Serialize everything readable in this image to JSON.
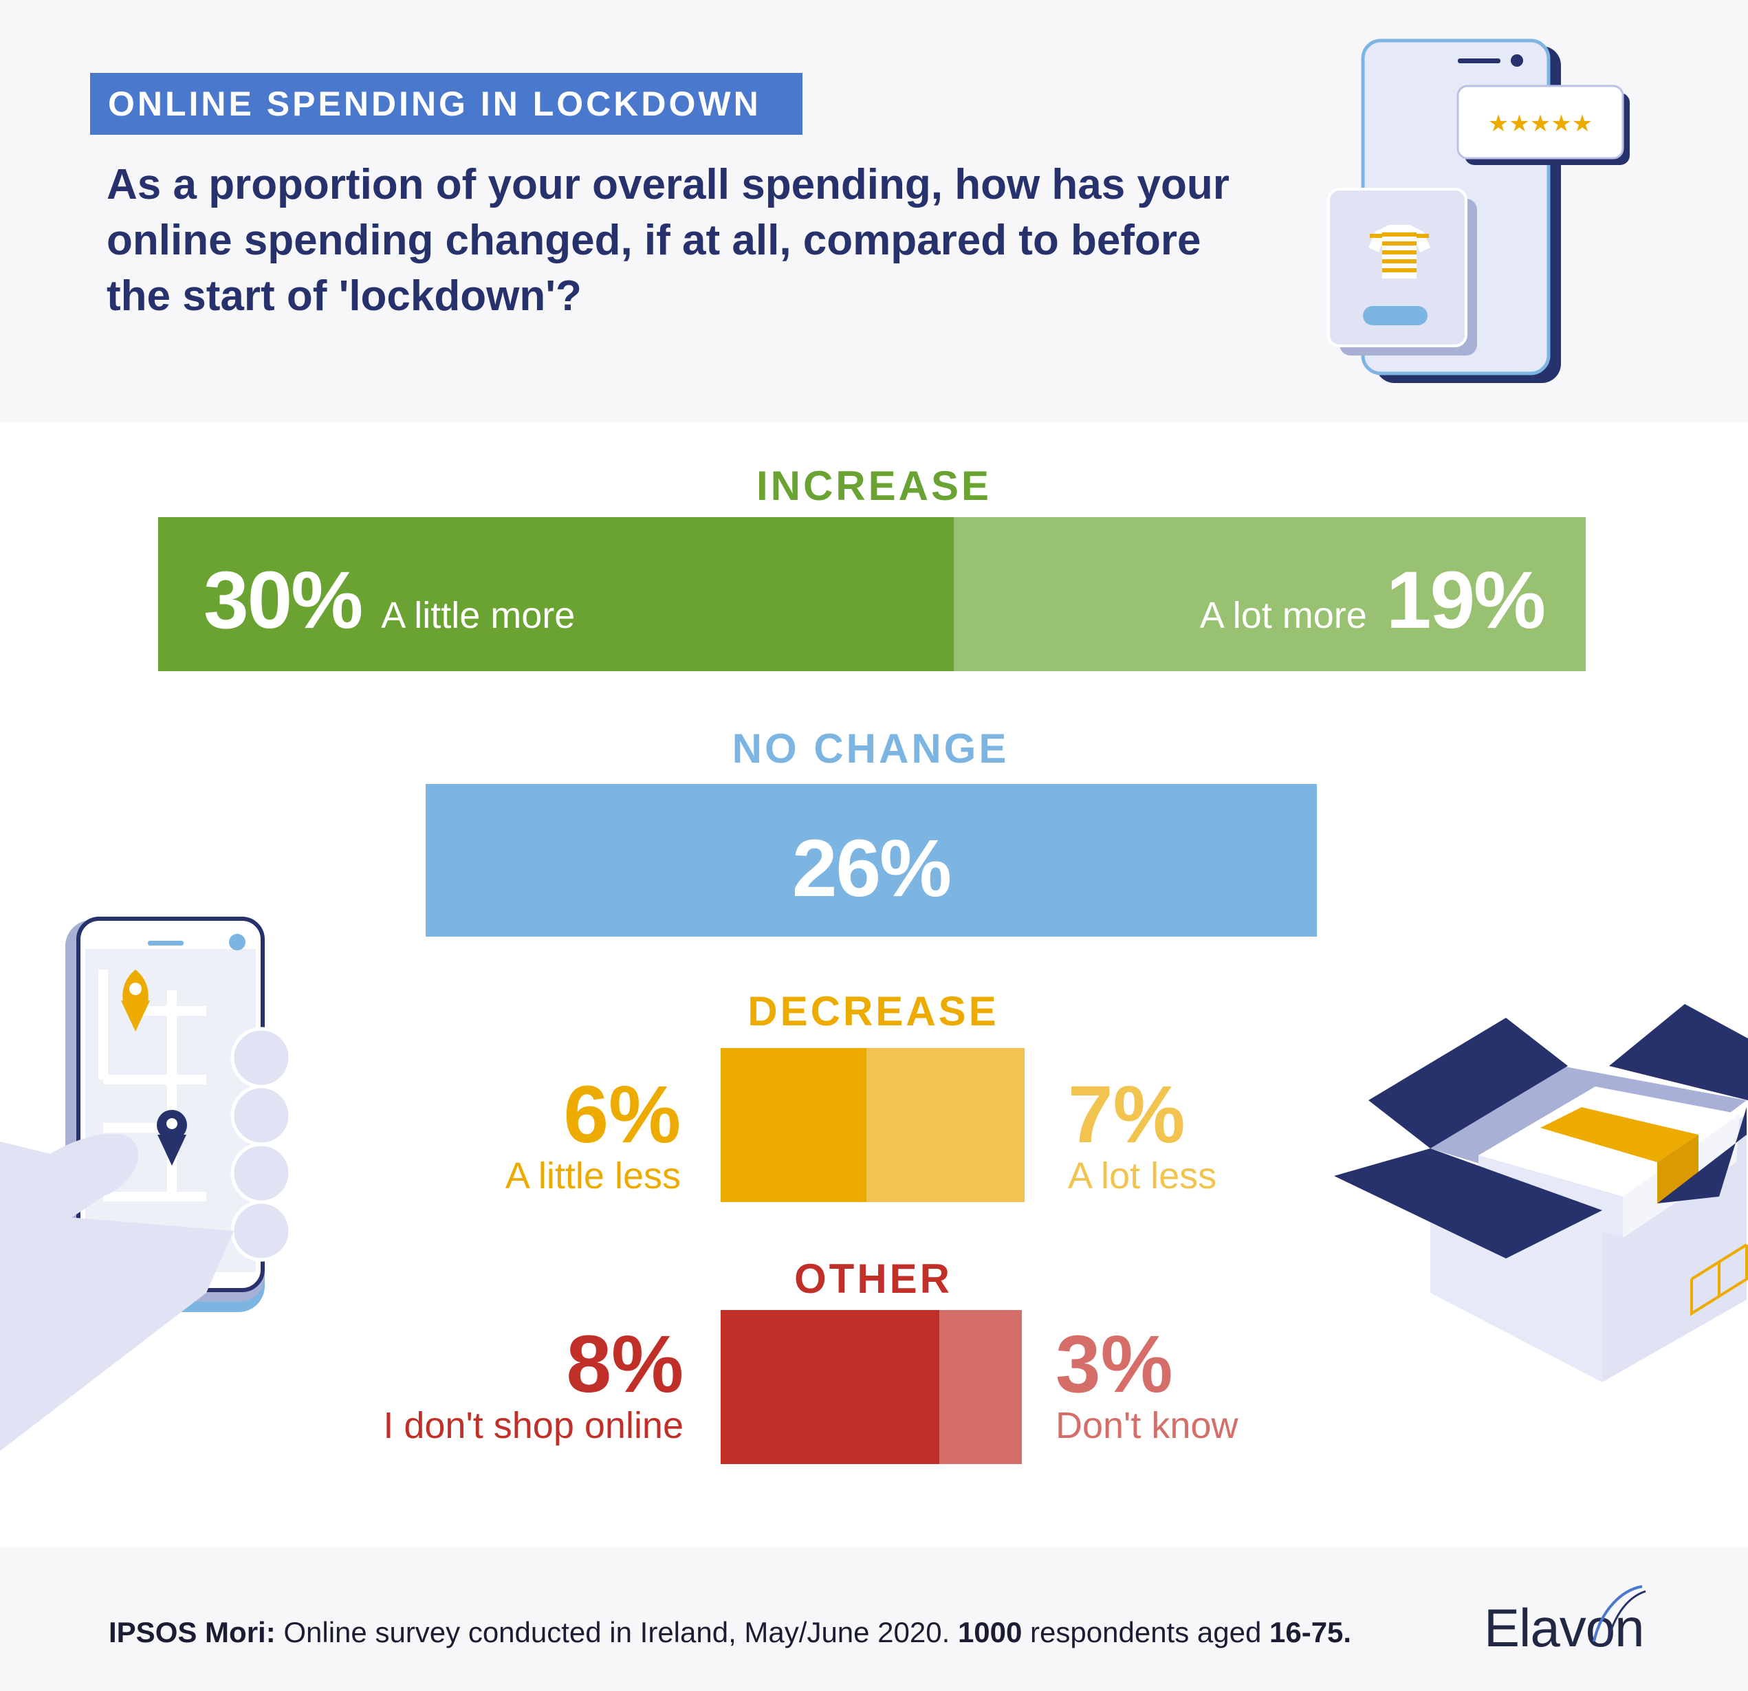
{
  "header": {
    "tag": "ONLINE SPENDING IN LOCKDOWN",
    "question": "As a proportion of your overall spending, how has your online spending changed, if at all, compared to before the start of 'lockdown'?"
  },
  "colors": {
    "increase_dark": "#6aa332",
    "increase_light": "#99c172",
    "nochange": "#7cb4e2",
    "decrease_dark": "#edab00",
    "decrease_light": "#f2c44f",
    "other_dark": "#c03028",
    "other_light": "#d56e68",
    "navy": "#27316b"
  },
  "chart_data": {
    "type": "bar",
    "title": "As a proportion of your overall spending, how has your online spending changed, if at all, compared to before the start of 'lockdown'?",
    "unit": "%",
    "groups": [
      {
        "name": "INCREASE",
        "segments": [
          {
            "label": "A little more",
            "value": 30,
            "display": "30%"
          },
          {
            "label": "A lot more",
            "value": 19,
            "display": "19%"
          }
        ]
      },
      {
        "name": "NO CHANGE",
        "segments": [
          {
            "label": "",
            "value": 26,
            "display": "26%"
          }
        ]
      },
      {
        "name": "DECREASE",
        "segments": [
          {
            "label": "A little less",
            "value": 6,
            "display": "6%"
          },
          {
            "label": "A lot less",
            "value": 7,
            "display": "7%"
          }
        ]
      },
      {
        "name": "OTHER",
        "segments": [
          {
            "label": "I don't shop online",
            "value": 8,
            "display": "8%"
          },
          {
            "label": "Don't know",
            "value": 3,
            "display": "3%"
          }
        ]
      }
    ]
  },
  "illustrations": {
    "rating_stars": "★★★★★",
    "phone_shop": "phone-shopping-illustration",
    "phone_map": "phone-map-illustration",
    "box": "open-box-illustration"
  },
  "footer": {
    "source_bold": "IPSOS Mori:",
    "source_text": " Online survey conducted in Ireland, May/June 2020. ",
    "respondents_bold": "1000",
    "respondents_text": " respondents aged ",
    "age_bold": "16-75.",
    "logo": "Elavon"
  }
}
